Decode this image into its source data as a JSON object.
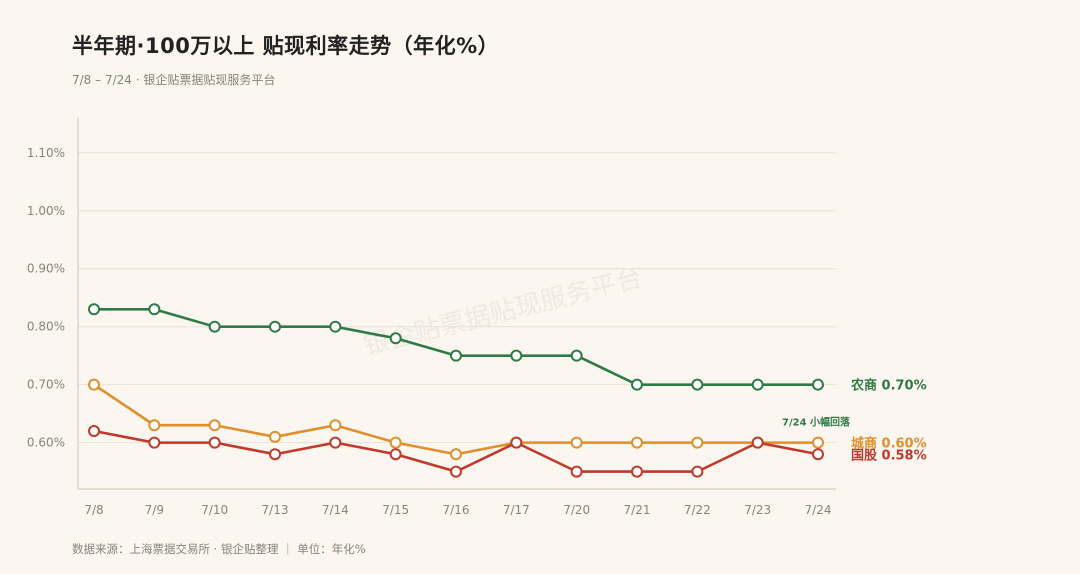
{
  "title": "半年期·100万以上 贴现利率走势（年化%）",
  "subtitle": "7/8 – 7/24 · 银企贴票据贴现服务平台",
  "footer": "数据来源：上海票据交易所 · 银企贴整理 ｜ 单位：年化%",
  "watermark": "银企贴票据贴现服务平台",
  "chart_data": {
    "type": "line",
    "title": "半年期·100万以上 贴现利率走势（年化%）",
    "categories": [
      "7/8",
      "7/9",
      "7/10",
      "7/13",
      "7/14",
      "7/15",
      "7/16",
      "7/17",
      "7/20",
      "7/21",
      "7/22",
      "7/23",
      "7/24"
    ],
    "ylim": [
      0.52,
      1.16
    ],
    "yticks": [
      0.6,
      0.7,
      0.8,
      0.9,
      1.0,
      1.1
    ],
    "ytick_labels": [
      "0.60%",
      "0.70%",
      "0.80%",
      "0.90%",
      "1.00%",
      "1.10%"
    ],
    "grid": true,
    "series": [
      {
        "name": "农商",
        "end_label": "0.70%",
        "color": "#2f7a46",
        "values": [
          0.83,
          0.83,
          0.8,
          0.8,
          0.8,
          0.78,
          0.75,
          0.75,
          0.75,
          0.7,
          0.7,
          0.7,
          0.7
        ]
      },
      {
        "name": "城商",
        "end_label": "0.60%",
        "color": "#e08f2c",
        "values": [
          0.7,
          0.63,
          0.63,
          0.61,
          0.63,
          0.6,
          0.58,
          0.6,
          0.6,
          0.6,
          0.6,
          0.6,
          0.6
        ]
      },
      {
        "name": "国股",
        "end_label": "0.58%",
        "color": "#c0392b",
        "values": [
          0.62,
          0.6,
          0.6,
          0.58,
          0.6,
          0.58,
          0.55,
          0.6,
          0.55,
          0.55,
          0.55,
          0.6,
          0.58
        ]
      }
    ],
    "annotations": [
      {
        "text": "7/24 小幅回落",
        "x": "7/24",
        "y": 0.635
      }
    ]
  }
}
